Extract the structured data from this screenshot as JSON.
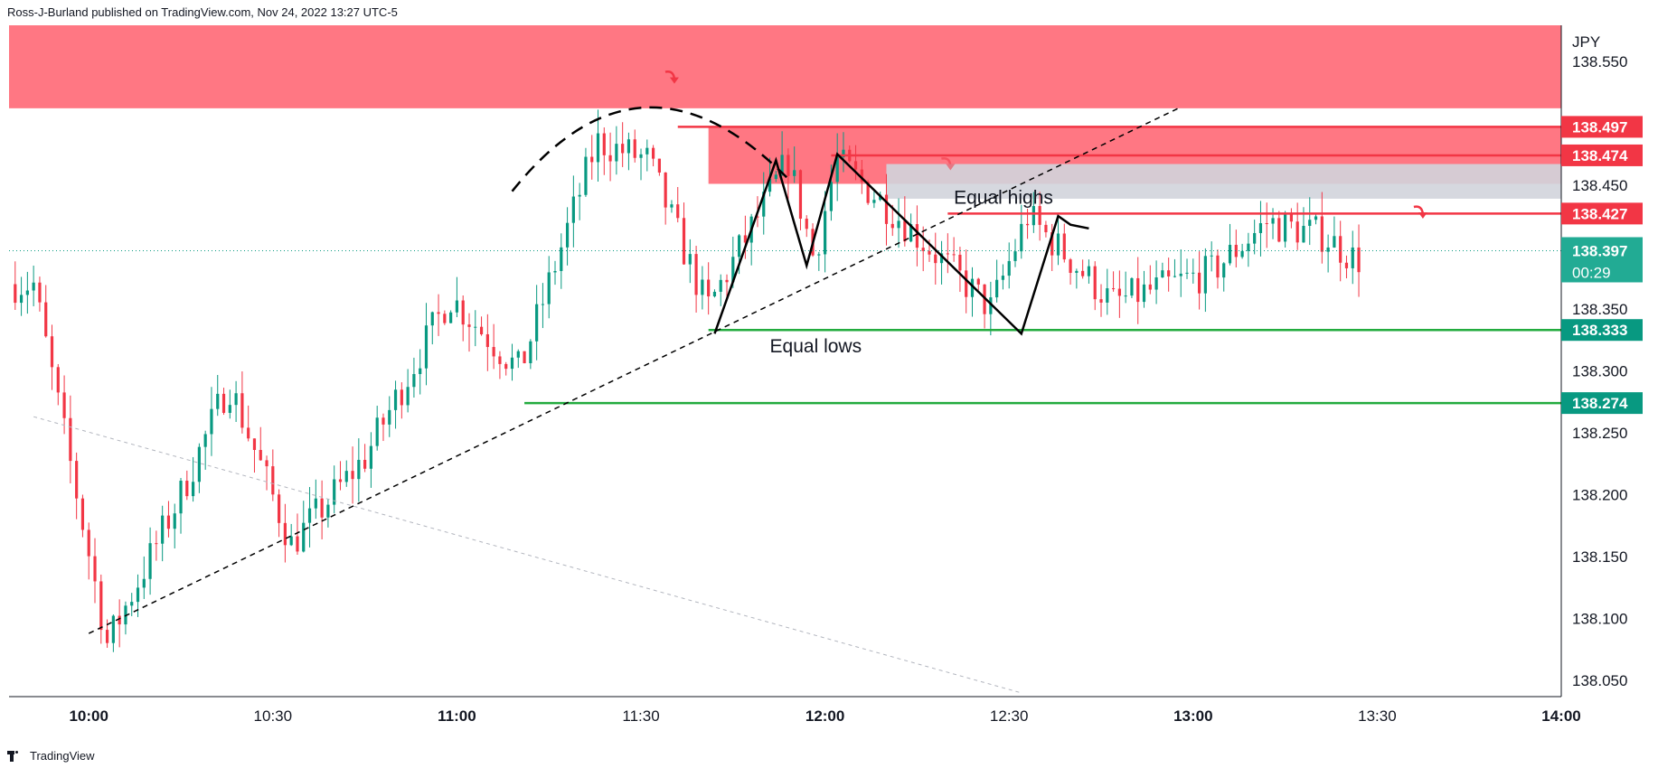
{
  "header": {
    "attribution": "Ross-J-Burland published on TradingView.com, Nov 24, 2022 13:27 UTC-5"
  },
  "footer": {
    "brand": "TradingView"
  },
  "chart_data": {
    "type": "candlestick",
    "currency": "JPY",
    "x_ticks": [
      "10:00",
      "10:30",
      "11:00",
      "11:30",
      "12:00",
      "12:30",
      "13:00",
      "13:30",
      "14:00"
    ],
    "x_range": [
      "09:47",
      "14:00"
    ],
    "y_ticks": [
      138.55,
      138.45,
      138.35,
      138.3,
      138.25,
      138.2,
      138.15,
      138.1,
      138.05
    ],
    "y_tick_labels": [
      "138.550",
      "138.450",
      "138.350",
      "138.300",
      "138.250",
      "138.200",
      "138.150",
      "138.100",
      "138.050"
    ],
    "ylim": [
      138.037,
      138.579
    ],
    "price_labels": [
      {
        "value": 138.497,
        "text": "138.497",
        "color": "#f23645"
      },
      {
        "value": 138.474,
        "text": "138.474",
        "color": "#f23645"
      },
      {
        "value": 138.427,
        "text": "138.427",
        "color": "#f23645"
      },
      {
        "value": 138.397,
        "text": "138.397",
        "sub": "00:29",
        "color": "#22ab94"
      },
      {
        "value": 138.333,
        "text": "138.333",
        "color": "#089981"
      },
      {
        "value": 138.274,
        "text": "138.274",
        "color": "#089981"
      }
    ],
    "annotations": {
      "equal_highs": "Equal highs",
      "equal_lows": "Equal lows"
    },
    "anchors": [
      {
        "t": 9.85,
        "p": 138.37
      },
      {
        "t": 10.05,
        "p": 138.08
      },
      {
        "t": 10.25,
        "p": 138.2
      },
      {
        "t": 10.38,
        "p": 138.29
      },
      {
        "t": 10.55,
        "p": 138.16
      },
      {
        "t": 10.75,
        "p": 138.23
      },
      {
        "t": 10.98,
        "p": 138.36
      },
      {
        "t": 11.17,
        "p": 138.3
      },
      {
        "t": 11.38,
        "p": 138.485
      },
      {
        "t": 11.52,
        "p": 138.47
      },
      {
        "t": 11.68,
        "p": 138.35
      },
      {
        "t": 11.9,
        "p": 138.47
      },
      {
        "t": 11.97,
        "p": 138.39
      },
      {
        "t": 12.03,
        "p": 138.47
      },
      {
        "t": 12.18,
        "p": 138.43
      },
      {
        "t": 12.45,
        "p": 138.35
      },
      {
        "t": 12.55,
        "p": 138.425
      },
      {
        "t": 12.78,
        "p": 138.355
      },
      {
        "t": 13.05,
        "p": 138.38
      },
      {
        "t": 13.2,
        "p": 138.42
      },
      {
        "t": 13.35,
        "p": 138.41
      },
      {
        "t": 13.44,
        "p": 138.39
      }
    ],
    "colors": {
      "up": "#089981",
      "down": "#f23645",
      "zone": "#ff7783",
      "gray_zone": "#d1d4dc",
      "support": "#22ab3e",
      "resistance": "#f23645"
    }
  }
}
